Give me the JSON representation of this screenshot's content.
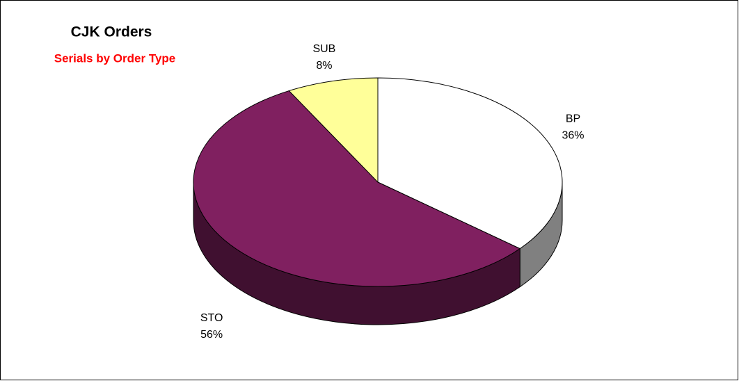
{
  "chart_data": {
    "type": "pie",
    "title": "CJK Orders",
    "subtitle": "Serials by Order Type",
    "categories": [
      "BP",
      "STO",
      "SUB"
    ],
    "values": [
      36,
      56,
      8
    ],
    "value_labels": [
      "36%",
      "56%",
      "8%"
    ],
    "colors": [
      "#ffffff",
      "#802060",
      "#ffff99"
    ],
    "side_colors": [
      "#808080",
      "#401030",
      "#999966"
    ]
  }
}
